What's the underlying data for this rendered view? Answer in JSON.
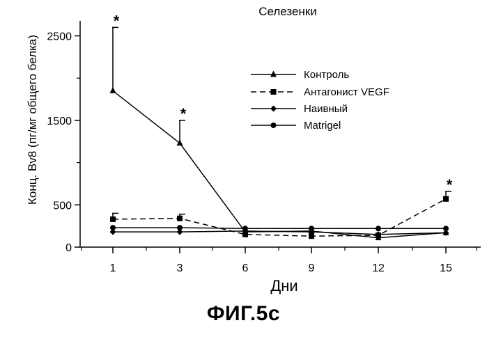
{
  "figure_label": "ФИГ.5с",
  "chart_data": {
    "type": "line",
    "title": "Селезенки",
    "xlabel": "Дни",
    "ylabel": "Конц. Bv8 (пг/мг общего белка)",
    "x": [
      1,
      3,
      6,
      9,
      12,
      15
    ],
    "x_tick_labels": [
      "1",
      "3",
      "6",
      "9",
      "12",
      "15"
    ],
    "y_ticks": [
      0,
      500,
      1500,
      2500
    ],
    "y_tick_labels": [
      "0",
      "500",
      "1500",
      "2500"
    ],
    "ylim": [
      0,
      2600
    ],
    "legend_position": "top-right",
    "grid": false,
    "series": [
      {
        "name": "Контроль",
        "marker": "triangle",
        "dash": "solid",
        "values": [
          1850,
          1230,
          180,
          190,
          110,
          170
        ],
        "error_upper": [
          2600,
          1500,
          null,
          null,
          null,
          null
        ]
      },
      {
        "name": "Антагонист VEGF",
        "marker": "square",
        "dash": "dashed",
        "values": [
          330,
          340,
          150,
          130,
          140,
          570
        ],
        "error_upper": [
          400,
          390,
          null,
          null,
          null,
          660
        ]
      },
      {
        "name": "Наивный",
        "marker": "diamond",
        "dash": "solid",
        "values": [
          180,
          180,
          190,
          180,
          150,
          170
        ],
        "error_upper": [
          null,
          null,
          null,
          null,
          null,
          null
        ]
      },
      {
        "name": "Matrigel",
        "marker": "circle",
        "dash": "solid",
        "values": [
          230,
          230,
          220,
          220,
          220,
          220
        ],
        "error_upper": [
          null,
          null,
          null,
          null,
          null,
          null
        ]
      }
    ],
    "annotations": [
      {
        "text": "*",
        "x": 1,
        "y": 2600
      },
      {
        "text": "*",
        "x": 3,
        "y": 1500
      },
      {
        "text": "*",
        "x": 15,
        "y": 660
      }
    ]
  }
}
